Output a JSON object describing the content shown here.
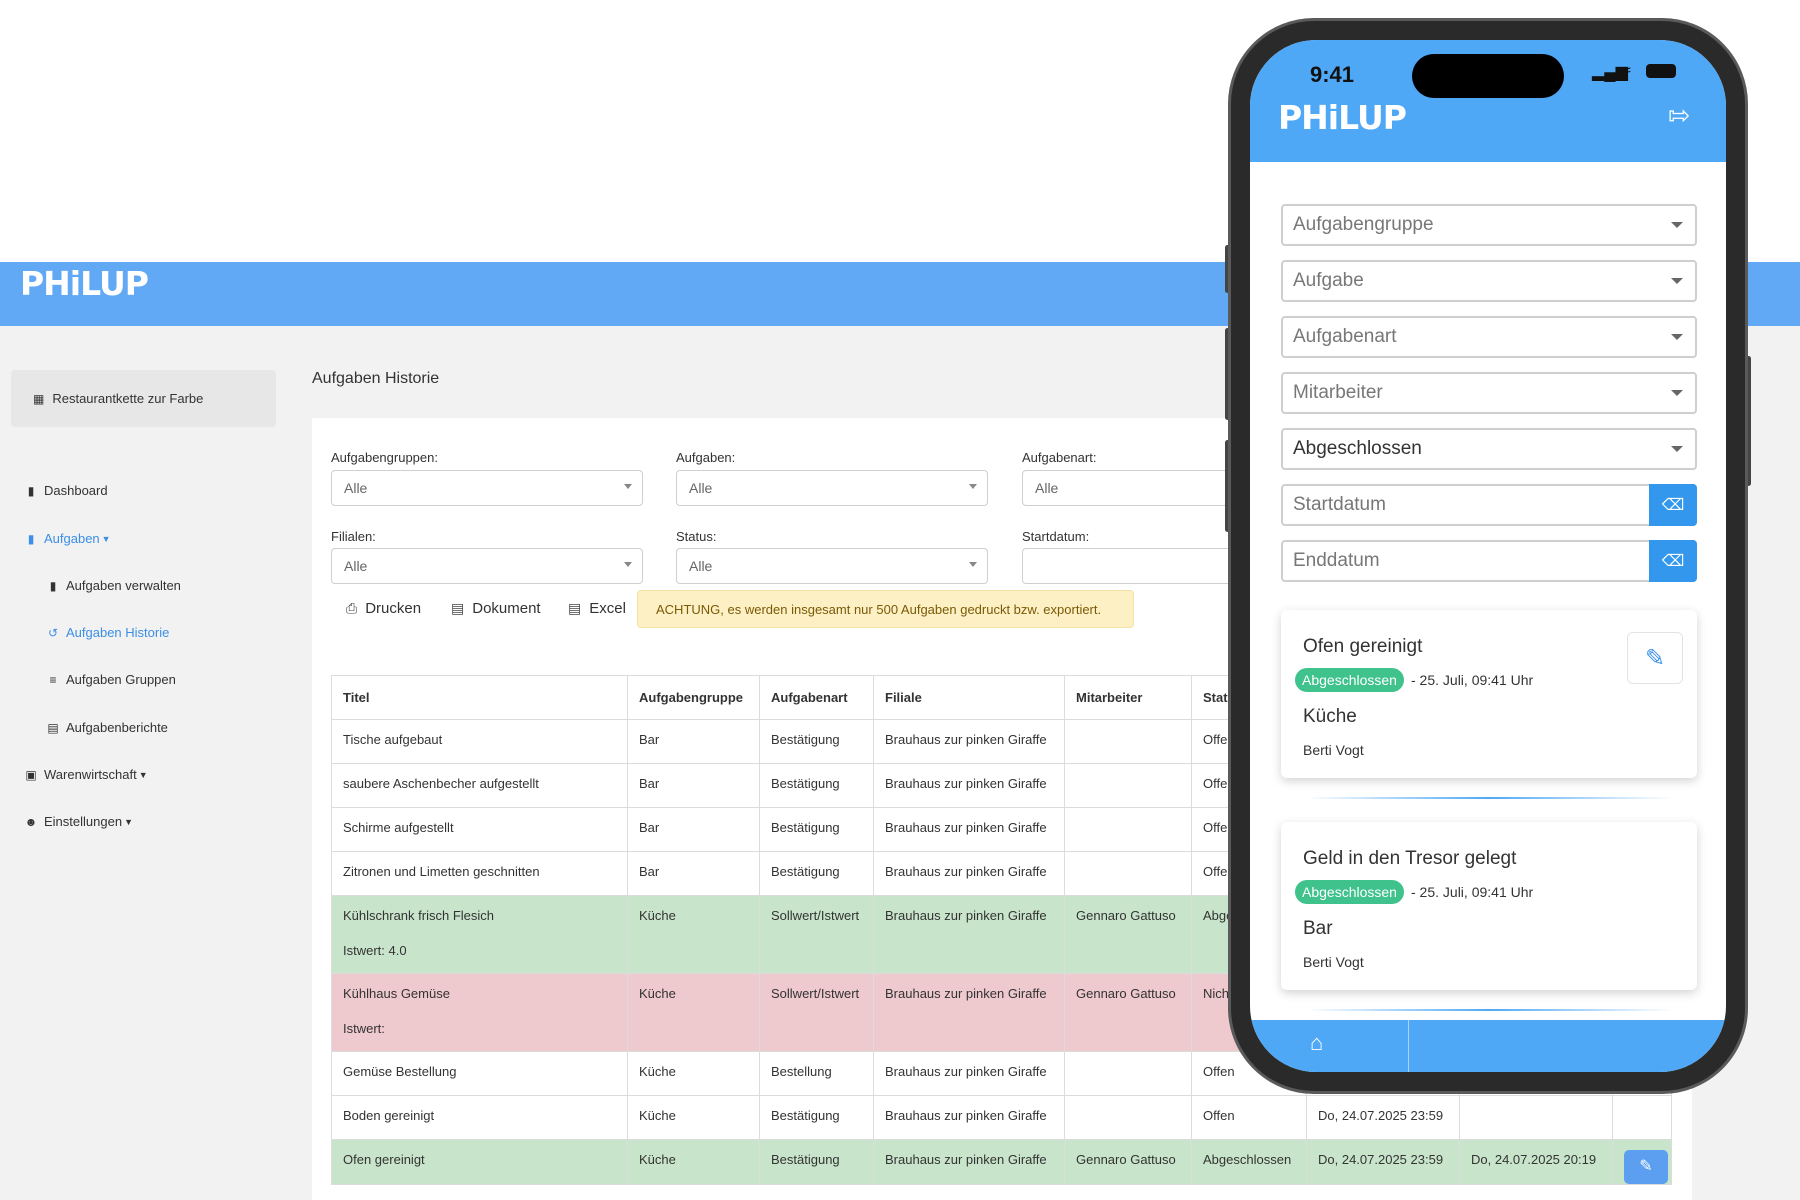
{
  "app": {
    "logo": "PHiLUP"
  },
  "sidebar": {
    "organization": "Restaurantkette zur Farbe",
    "items": [
      {
        "label": "Dashboard",
        "icon": "clipboard-icon"
      },
      {
        "label": "Aufgaben",
        "icon": "clipboard-icon",
        "active": true
      },
      {
        "label": "Aufgaben verwalten",
        "icon": "clipboard-icon"
      },
      {
        "label": "Aufgaben Historie",
        "icon": "history-icon",
        "active": true
      },
      {
        "label": "Aufgaben Gruppen",
        "icon": "layers-icon"
      },
      {
        "label": "Aufgabenberichte",
        "icon": "report-icon"
      },
      {
        "label": "Warenwirtschaft",
        "icon": "warehouse-icon"
      },
      {
        "label": "Einstellungen",
        "icon": "user-settings-icon"
      }
    ]
  },
  "page": {
    "title": "Aufgaben Historie"
  },
  "filters": {
    "aufgabengruppen": {
      "label": "Aufgabengruppen:",
      "value": "Alle"
    },
    "aufgaben": {
      "label": "Aufgaben:",
      "value": "Alle"
    },
    "aufgabenart": {
      "label": "Aufgabenart:",
      "value": "Alle"
    },
    "filialen": {
      "label": "Filialen:",
      "value": "Alle"
    },
    "status": {
      "label": "Status:",
      "value": "Alle"
    },
    "startdatum": {
      "label": "Startdatum:",
      "value": ""
    }
  },
  "actions": {
    "print": "Drucken",
    "document": "Dokument",
    "excel": "Excel"
  },
  "warning": "ACHTUNG, es werden insgesamt nur 500 Aufgaben gedruckt bzw. exportiert.",
  "table": {
    "headers": [
      "Titel",
      "Aufgabengruppe",
      "Aufgabenart",
      "Filiale",
      "Mitarbeiter",
      "Stat"
    ],
    "rows": [
      {
        "title": "Tische aufgebaut",
        "group": "Bar",
        "type": "Bestätigung",
        "branch": "Brauhaus zur pinken Giraffe",
        "employee": "",
        "status": "Offe"
      },
      {
        "title": "saubere Aschenbecher aufgestellt",
        "group": "Bar",
        "type": "Bestätigung",
        "branch": "Brauhaus zur pinken Giraffe",
        "employee": "",
        "status": "Offe"
      },
      {
        "title": "Schirme aufgestellt",
        "group": "Bar",
        "type": "Bestätigung",
        "branch": "Brauhaus zur pinken Giraffe",
        "employee": "",
        "status": "Offe"
      },
      {
        "title": "Zitronen und Limetten geschnitten",
        "group": "Bar",
        "type": "Bestätigung",
        "branch": "Brauhaus zur pinken Giraffe",
        "employee": "",
        "status": "Offe"
      },
      {
        "title": "Kühlschrank frisch Flesich",
        "sub": "Istwert: 4.0",
        "group": "Küche",
        "type": "Sollwert/Istwert",
        "branch": "Brauhaus zur pinken Giraffe",
        "employee": "Gennaro Gattuso",
        "status": "Abge"
      },
      {
        "title": "Kühlhaus Gemüse",
        "sub": "Istwert:",
        "group": "Küche",
        "type": "Sollwert/Istwert",
        "branch": "Brauhaus zur pinken Giraffe",
        "employee": "Gennaro Gattuso",
        "status": "Nich"
      },
      {
        "title": "Gemüse Bestellung",
        "group": "Küche",
        "type": "Bestellung",
        "branch": "Brauhaus zur pinken Giraffe",
        "employee": "",
        "status": "Offen"
      },
      {
        "title": "Boden gereinigt",
        "group": "Küche",
        "type": "Bestätigung",
        "branch": "Brauhaus zur pinken Giraffe",
        "employee": "",
        "status": "Offen",
        "due": "Do, 24.07.2025 23:59",
        "done": ""
      },
      {
        "title": "Ofen gereinigt",
        "group": "Küche",
        "type": "Bestätigung",
        "branch": "Brauhaus zur pinken Giraffe",
        "employee": "Gennaro Gattuso",
        "status": "Abgeschlossen",
        "due": "Do, 24.07.2025 23:59",
        "done": "Do, 24.07.2025 20:19"
      }
    ]
  },
  "phone": {
    "time": "9:41",
    "logo": "PHiLUP",
    "fields": {
      "aufgabengruppe": "Aufgabengruppe",
      "aufgabe": "Aufgabe",
      "aufgabenart": "Aufgabenart",
      "mitarbeiter": "Mitarbeiter",
      "status": "Abgeschlossen",
      "startdatum": "Startdatum",
      "enddatum": "Enddatum"
    },
    "cards": [
      {
        "title": "Ofen gereinigt",
        "badge": "Abgeschlossen",
        "date": "- 25. Juli, 09:41 Uhr",
        "location": "Küche",
        "person": "Berti Vogt"
      },
      {
        "title": "Geld in den Tresor gelegt",
        "badge": "Abgeschlossen",
        "date": "- 25. Juli, 09:41 Uhr",
        "location": "Bar",
        "person": "Berti Vogt"
      }
    ]
  },
  "colors": {
    "brand": "#62a9f5",
    "phone_brand": "#4fa8f6",
    "success": "#3fc28c",
    "row_ok": "#c8e5cb",
    "row_bad": "#eec9ce",
    "warning_bg": "#fdf0c5"
  }
}
